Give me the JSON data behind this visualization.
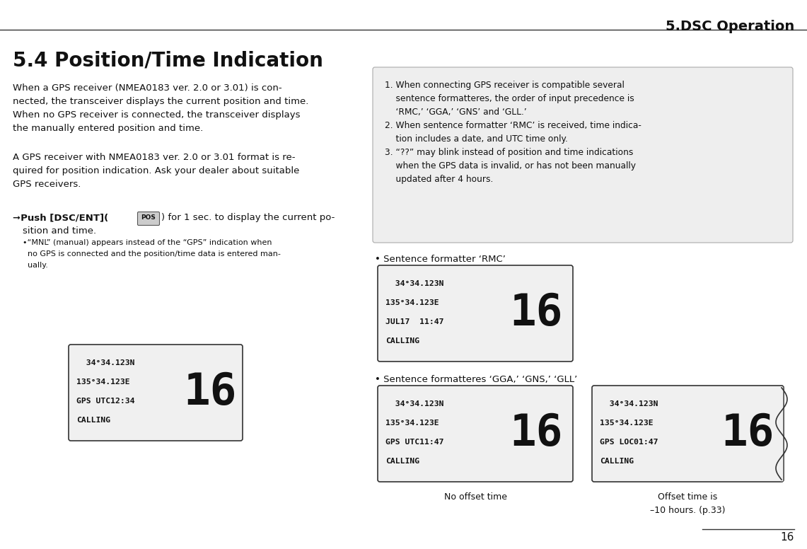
{
  "page_title": "5.DSC Operation",
  "section_title": "5.4 Position/Time Indication",
  "page_number": "16",
  "bg_color": "#ffffff",
  "left_para1": [
    "When a GPS receiver (NMEA0183 ver. 2.0 or 3.01) is con-",
    "nected, the transceiver displays the current position and time.",
    "When no GPS receiver is connected, the transceiver displays",
    "the manually entered position and time."
  ],
  "left_para2": [
    "A GPS receiver with NMEA0183 ver. 2.0 or 3.01 format is re-",
    "quired for position indication. Ask your dealer about suitable",
    "GPS receivers."
  ],
  "right_note_lines": [
    "1. When connecting GPS receiver is compatible several",
    "    sentence formatteres, the order of input precedence is",
    "    ‘RMC,’ ‘GGA,’ ‘GNS’ and ‘GLL.’",
    "2. When sentence formatter ‘RMC’ is received, time indica-",
    "    tion includes a date, and UTC time only.",
    "3. “??” may blink instead of position and time indications",
    "    when the GPS data is invalid, or has not been manually",
    "    updated after 4 hours."
  ],
  "lcd1_lines": [
    "  34°34.123N",
    "135°34.123E",
    "GPS UTC12:34",
    "CALLING"
  ],
  "lcd_rmc_lines": [
    "  34°34.123N",
    "135°34.123E",
    "JUL17  11:47",
    "CALLING"
  ],
  "lcd_gga1_lines": [
    "  34°34.123N",
    "135°34.123E",
    "GPS UTC11:47",
    "CALLING"
  ],
  "lcd_gga2_lines": [
    "  34°34.123N",
    "135°34.123E",
    "GPS LOC01:47",
    "CALLING"
  ],
  "rmc_label": "• Sentence formatter ‘RMC’",
  "gga_label": "• Sentence formatteres ‘GGA,’ ‘GNS,’ ‘GLL’",
  "no_offset_label": "No offset time",
  "offset_label": "Offset time is\n–10 hours. (p.33)"
}
